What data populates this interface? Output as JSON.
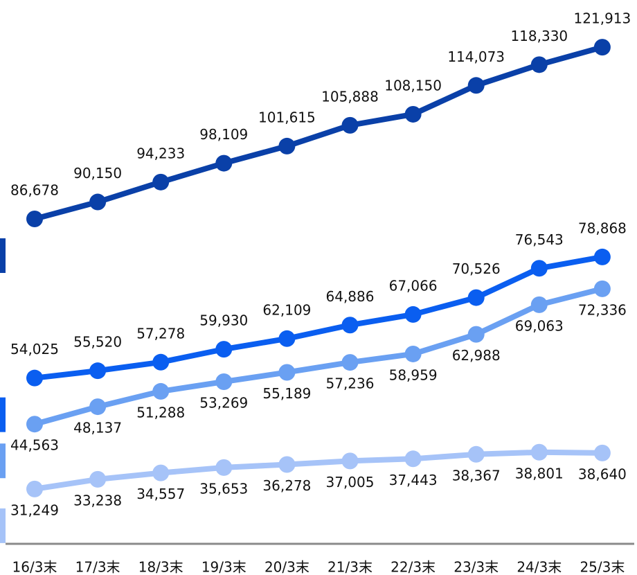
{
  "chart_data": {
    "type": "line",
    "categories": [
      "16/3末",
      "17/3末",
      "18/3末",
      "19/3末",
      "20/3末",
      "21/3末",
      "22/3末",
      "23/3末",
      "24/3末",
      "25/3末"
    ],
    "series": [
      {
        "color": "#0a40a8",
        "values": [
          86678,
          90150,
          94233,
          98109,
          101615,
          105888,
          108150,
          114073,
          118330,
          121913
        ]
      },
      {
        "color": "#0a5ef0",
        "values": [
          54025,
          55520,
          57278,
          59930,
          62109,
          64886,
          67066,
          70526,
          76543,
          78868
        ]
      },
      {
        "color": "#6aa0f2",
        "values": [
          44563,
          48137,
          51288,
          53269,
          55189,
          57236,
          58959,
          62988,
          69063,
          72336
        ]
      },
      {
        "color": "#a6c3f8",
        "values": [
          31249,
          33238,
          34557,
          35653,
          36278,
          37005,
          37443,
          38367,
          38801,
          38640
        ]
      }
    ],
    "ylim": [
      20000,
      131600
    ]
  }
}
